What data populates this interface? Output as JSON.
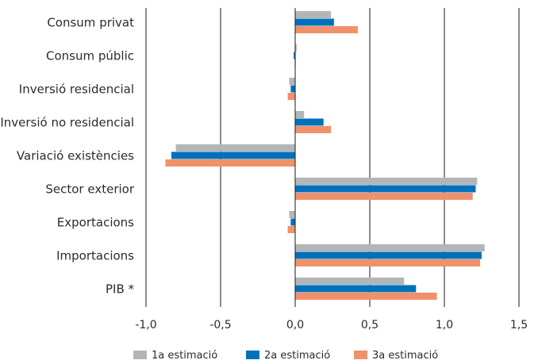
{
  "chart_data": {
    "type": "bar",
    "orientation": "horizontal",
    "categories": [
      "Consum privat",
      "Consum públic",
      "Inversió residencial",
      "Inversió no residencial",
      "Variació existències",
      "Sector exterior",
      "Exportacions",
      "Importacions",
      "PIB *"
    ],
    "series": [
      {
        "name": "1a estimació",
        "color": "#b2b6b9",
        "values": [
          0.24,
          0.01,
          -0.04,
          0.06,
          -0.8,
          1.22,
          -0.04,
          1.27,
          0.73
        ]
      },
      {
        "name": "2a estimació",
        "color": "#0071b9",
        "values": [
          0.26,
          -0.01,
          -0.03,
          0.19,
          -0.83,
          1.21,
          -0.03,
          1.25,
          0.81
        ]
      },
      {
        "name": "3a estimació",
        "color": "#f0916a",
        "values": [
          0.42,
          0.0,
          -0.05,
          0.24,
          -0.87,
          1.19,
          -0.05,
          1.24,
          0.95
        ]
      }
    ],
    "xlim": [
      -1.0,
      1.5
    ],
    "xticks": [
      -1.0,
      -0.5,
      0.0,
      0.5,
      1.0,
      1.5
    ],
    "xtick_labels": [
      "-1,0",
      "-0,5",
      "0,0",
      "0,5",
      "1,0",
      "1,5"
    ],
    "grid": "vertical",
    "legend_position": "bottom",
    "title": "",
    "xlabel": "",
    "ylabel": ""
  }
}
